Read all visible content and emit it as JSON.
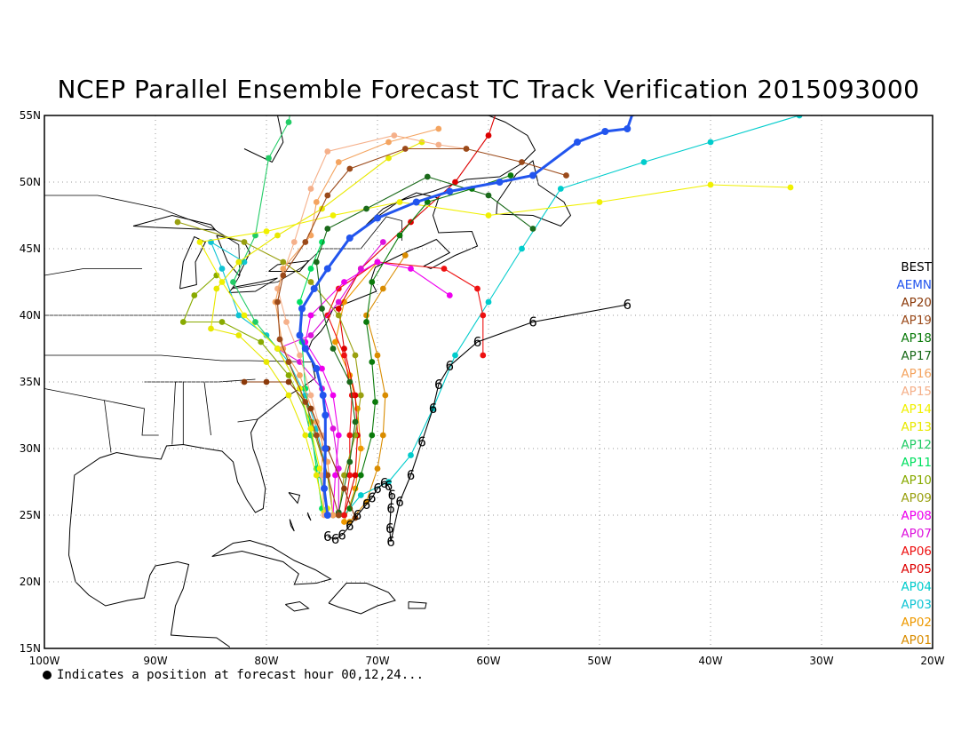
{
  "title": "NCEP Parallel Ensemble Forecast TC Track Verification 2015093000",
  "footnote": "Indicates a position at forecast hour 00,12,24...",
  "axes": {
    "x_ticks": [
      "100W",
      "90W",
      "80W",
      "70W",
      "60W",
      "50W",
      "40W",
      "30W",
      "20W"
    ],
    "y_ticks": [
      "55N",
      "50N",
      "45N",
      "40N",
      "35N",
      "30N",
      "25N",
      "20N",
      "15N"
    ],
    "lon_range": [
      -100,
      -20
    ],
    "lat_range": [
      15,
      55
    ],
    "grid": "dotted"
  },
  "legend": [
    {
      "label": "BEST",
      "color": "#000000"
    },
    {
      "label": "AEMN",
      "color": "#2255ee"
    },
    {
      "label": "AP20",
      "color": "#8b3a0a"
    },
    {
      "label": "AP19",
      "color": "#9b4a1a"
    },
    {
      "label": "AP18",
      "color": "#0a7a0a"
    },
    {
      "label": "AP17",
      "color": "#1a6a1a"
    },
    {
      "label": "AP16",
      "color": "#f4a460"
    },
    {
      "label": "AP15",
      "color": "#f5b08a"
    },
    {
      "label": "AP14",
      "color": "#f0f000"
    },
    {
      "label": "AP13",
      "color": "#e8e800"
    },
    {
      "label": "AP12",
      "color": "#22cc66"
    },
    {
      "label": "AP11",
      "color": "#00e060"
    },
    {
      "label": "AP10",
      "color": "#88aa00"
    },
    {
      "label": "AP09",
      "color": "#99a010"
    },
    {
      "label": "AP08",
      "color": "#ee00ee"
    },
    {
      "label": "AP07",
      "color": "#dd11dd"
    },
    {
      "label": "AP06",
      "color": "#ee1111"
    },
    {
      "label": "AP05",
      "color": "#dd0000"
    },
    {
      "label": "AP04",
      "color": "#00cccc"
    },
    {
      "label": "AP03",
      "color": "#11c4d4"
    },
    {
      "label": "AP02",
      "color": "#ee9900"
    },
    {
      "label": "AP01",
      "color": "#d98c00"
    }
  ],
  "tracks": [
    {
      "id": "BEST",
      "color": "#000000",
      "points": [
        [
          -74.5,
          23.4
        ],
        [
          -73.8,
          23.2
        ],
        [
          -73.2,
          23.5
        ],
        [
          -72.5,
          24.2
        ],
        [
          -71.8,
          25.0
        ],
        [
          -71.0,
          25.8
        ],
        [
          -70.5,
          26.3
        ],
        [
          -70.0,
          27.0
        ],
        [
          -69.4,
          27.4
        ],
        [
          -69.0,
          27.2
        ],
        [
          -68.7,
          26.5
        ],
        [
          -68.8,
          25.5
        ],
        [
          -68.9,
          24.0
        ],
        [
          -68.8,
          23.0
        ],
        [
          -68.0,
          26.0
        ],
        [
          -67.0,
          28.0
        ],
        [
          -66.0,
          30.5
        ],
        [
          -65.0,
          33.0
        ],
        [
          -64.5,
          34.8
        ],
        [
          -63.5,
          36.2
        ],
        [
          -61.0,
          38.0
        ],
        [
          -56.0,
          39.5
        ],
        [
          -47.5,
          40.8
        ]
      ]
    },
    {
      "id": "AEMN",
      "color": "#2255ee",
      "points": [
        [
          -74.5,
          25.0
        ],
        [
          -74.8,
          27.0
        ],
        [
          -74.7,
          30.0
        ],
        [
          -74.7,
          32.5
        ],
        [
          -74.9,
          34.0
        ],
        [
          -75.5,
          36.0
        ],
        [
          -76.5,
          37.5
        ],
        [
          -77.0,
          38.5
        ],
        [
          -76.8,
          40.5
        ],
        [
          -75.7,
          42.0
        ],
        [
          -74.5,
          43.5
        ],
        [
          -72.5,
          45.8
        ],
        [
          -70.0,
          47.3
        ],
        [
          -66.5,
          48.5
        ],
        [
          -63.5,
          49.3
        ],
        [
          -59.0,
          50.0
        ],
        [
          -56.0,
          50.5
        ],
        [
          -52.0,
          53.0
        ],
        [
          -49.5,
          53.8
        ],
        [
          -47.5,
          54.0
        ],
        [
          -47.0,
          55.2
        ]
      ]
    },
    {
      "id": "AP20",
      "color": "#8b3a0a",
      "points": [
        [
          -72.0,
          24.8
        ],
        [
          -73.0,
          27.0
        ],
        [
          -74.5,
          30.0
        ],
        [
          -76.0,
          33.0
        ],
        [
          -78.0,
          35.0
        ],
        [
          -80.0,
          35.0
        ],
        [
          -82.0,
          35.0
        ]
      ]
    },
    {
      "id": "AP19",
      "color": "#9b4a1a",
      "points": [
        [
          -73.5,
          25.0
        ],
        [
          -74.5,
          28.0
        ],
        [
          -75.5,
          31.0
        ],
        [
          -76.5,
          33.5
        ],
        [
          -78.0,
          36.5
        ],
        [
          -78.8,
          38.2
        ],
        [
          -79.0,
          41.0
        ],
        [
          -78.5,
          43.0
        ],
        [
          -76.5,
          45.5
        ],
        [
          -74.5,
          49.0
        ],
        [
          -72.5,
          51.0
        ],
        [
          -67.5,
          52.5
        ],
        [
          -62.0,
          52.5
        ],
        [
          -57.0,
          51.5
        ],
        [
          -53.0,
          50.5
        ]
      ]
    },
    {
      "id": "AP18",
      "color": "#0a7a0a",
      "points": [
        [
          -72.5,
          25.5
        ],
        [
          -71.5,
          28.0
        ],
        [
          -70.5,
          31.0
        ],
        [
          -70.2,
          33.5
        ],
        [
          -70.5,
          36.5
        ],
        [
          -71.0,
          39.5
        ],
        [
          -70.5,
          42.5
        ],
        [
          -68.0,
          46.0
        ],
        [
          -65.5,
          48.5
        ],
        [
          -61.5,
          49.5
        ],
        [
          -58.0,
          50.5
        ]
      ]
    },
    {
      "id": "AP17",
      "color": "#1a6a1a",
      "points": [
        [
          -73.5,
          25.2
        ],
        [
          -72.5,
          29.0
        ],
        [
          -72.0,
          32.0
        ],
        [
          -72.5,
          35.0
        ],
        [
          -74.0,
          37.5
        ],
        [
          -75.0,
          40.5
        ],
        [
          -75.5,
          44.0
        ],
        [
          -74.5,
          46.5
        ],
        [
          -71.0,
          48.0
        ],
        [
          -65.5,
          50.4
        ],
        [
          -60.0,
          49.0
        ],
        [
          -56.0,
          46.5
        ]
      ]
    },
    {
      "id": "AP16",
      "color": "#f4a460",
      "points": [
        [
          -74.0,
          25.0
        ],
        [
          -74.5,
          29.0
        ],
        [
          -75.5,
          32.0
        ],
        [
          -77.0,
          35.5
        ],
        [
          -78.5,
          37.5
        ],
        [
          -79.2,
          41.0
        ],
        [
          -78.5,
          43.5
        ],
        [
          -76.0,
          46.0
        ],
        [
          -75.5,
          48.5
        ],
        [
          -73.5,
          51.5
        ],
        [
          -69.0,
          53.0
        ],
        [
          -64.5,
          54.0
        ]
      ]
    },
    {
      "id": "AP15",
      "color": "#f5b08a",
      "points": [
        [
          -74.8,
          25.0
        ],
        [
          -75.0,
          28.0
        ],
        [
          -75.0,
          31.0
        ],
        [
          -76.0,
          34.0
        ],
        [
          -77.0,
          37.0
        ],
        [
          -78.2,
          39.5
        ],
        [
          -79.0,
          42.0
        ],
        [
          -77.5,
          45.5
        ],
        [
          -76.0,
          49.5
        ],
        [
          -74.5,
          52.3
        ],
        [
          -68.5,
          53.5
        ],
        [
          -64.5,
          52.8
        ],
        [
          -62.0,
          52.5
        ]
      ]
    },
    {
      "id": "AP14",
      "color": "#f0f000",
      "points": [
        [
          -74.5,
          25.5
        ],
        [
          -75.2,
          28.5
        ],
        [
          -76.0,
          31.5
        ],
        [
          -77.0,
          34.5
        ],
        [
          -79.0,
          37.5
        ],
        [
          -82.0,
          40.0
        ],
        [
          -84.0,
          42.5
        ],
        [
          -86.0,
          45.5
        ],
        [
          -80.0,
          46.3
        ],
        [
          -74.0,
          47.5
        ],
        [
          -68.0,
          48.5
        ],
        [
          -60.0,
          47.5
        ],
        [
          -50.0,
          48.5
        ],
        [
          -40.0,
          49.8
        ],
        [
          -32.8,
          49.6
        ]
      ]
    },
    {
      "id": "AP13",
      "color": "#e8e800",
      "points": [
        [
          -74.8,
          25.2
        ],
        [
          -75.5,
          28.0
        ],
        [
          -76.5,
          31.0
        ],
        [
          -78.0,
          34.0
        ],
        [
          -80.0,
          36.5
        ],
        [
          -82.5,
          38.5
        ],
        [
          -85.0,
          39.0
        ],
        [
          -84.5,
          42.0
        ],
        [
          -82.5,
          44.0
        ],
        [
          -79.0,
          46.0
        ],
        [
          -75.0,
          48.0
        ],
        [
          -69.0,
          51.8
        ],
        [
          -66.0,
          53.0
        ]
      ]
    },
    {
      "id": "AP12",
      "color": "#22cc66",
      "points": [
        [
          -74.5,
          25.0
        ],
        [
          -75.2,
          28.0
        ],
        [
          -76.0,
          31.0
        ],
        [
          -77.0,
          34.5
        ],
        [
          -79.0,
          37.5
        ],
        [
          -81.0,
          39.5
        ],
        [
          -83.0,
          42.5
        ],
        [
          -81.0,
          46.0
        ],
        [
          -79.8,
          51.8
        ],
        [
          -78.0,
          54.5
        ],
        [
          -77.5,
          57.0
        ]
      ]
    },
    {
      "id": "AP11",
      "color": "#00e060",
      "points": [
        [
          -75.0,
          25.5
        ],
        [
          -75.5,
          28.5
        ],
        [
          -76.0,
          31.5
        ],
        [
          -76.5,
          34.5
        ],
        [
          -76.8,
          38.0
        ],
        [
          -77.0,
          41.0
        ],
        [
          -76.0,
          43.5
        ],
        [
          -75.0,
          45.5
        ]
      ]
    },
    {
      "id": "AP10",
      "color": "#88aa00",
      "points": [
        [
          -74.0,
          25.0
        ],
        [
          -74.5,
          28.0
        ],
        [
          -76.0,
          32.0
        ],
        [
          -78.0,
          35.5
        ],
        [
          -80.5,
          38.0
        ],
        [
          -84.0,
          39.5
        ],
        [
          -87.5,
          39.5
        ],
        [
          -86.5,
          41.5
        ],
        [
          -84.5,
          43.0
        ]
      ]
    },
    {
      "id": "AP09",
      "color": "#99a010",
      "points": [
        [
          -73.5,
          25.0
        ],
        [
          -73.0,
          28.0
        ],
        [
          -72.0,
          31.0
        ],
        [
          -71.5,
          34.0
        ],
        [
          -72.0,
          37.0
        ],
        [
          -73.5,
          40.0
        ],
        [
          -76.0,
          42.5
        ],
        [
          -78.5,
          44.0
        ],
        [
          -82.0,
          45.5
        ],
        [
          -88.0,
          47.0
        ]
      ]
    },
    {
      "id": "AP08",
      "color": "#ee00ee",
      "points": [
        [
          -74.0,
          25.0
        ],
        [
          -73.8,
          28.0
        ],
        [
          -73.5,
          31.0
        ],
        [
          -74.0,
          34.0
        ],
        [
          -75.0,
          36.0
        ],
        [
          -76.5,
          38.0
        ],
        [
          -76.0,
          40.0
        ],
        [
          -73.0,
          42.5
        ],
        [
          -70.0,
          44.0
        ],
        [
          -67.0,
          43.5
        ],
        [
          -63.5,
          41.5
        ]
      ]
    },
    {
      "id": "AP07",
      "color": "#dd11dd",
      "points": [
        [
          -73.5,
          25.2
        ],
        [
          -73.5,
          28.5
        ],
        [
          -74.0,
          31.5
        ],
        [
          -75.0,
          34.5
        ],
        [
          -77.0,
          36.5
        ],
        [
          -79.0,
          37.5
        ],
        [
          -76.0,
          38.5
        ],
        [
          -73.5,
          41.0
        ],
        [
          -71.5,
          43.5
        ],
        [
          -69.5,
          45.5
        ]
      ]
    },
    {
      "id": "AP06",
      "color": "#ee1111",
      "points": [
        [
          -73.0,
          25.0
        ],
        [
          -72.5,
          28.0
        ],
        [
          -72.5,
          31.0
        ],
        [
          -72.3,
          34.0
        ],
        [
          -73.0,
          37.0
        ],
        [
          -74.5,
          40.0
        ],
        [
          -73.5,
          42.0
        ],
        [
          -70.0,
          44.0
        ],
        [
          -64.0,
          43.5
        ],
        [
          -61.0,
          42.0
        ],
        [
          -60.5,
          40.0
        ],
        [
          -60.5,
          37.0
        ]
      ]
    },
    {
      "id": "AP05",
      "color": "#dd0000",
      "points": [
        [
          -73.0,
          25.0
        ],
        [
          -72.0,
          28.0
        ],
        [
          -71.8,
          31.0
        ],
        [
          -72.0,
          34.0
        ],
        [
          -73.0,
          37.5
        ],
        [
          -73.5,
          40.5
        ],
        [
          -71.5,
          43.5
        ],
        [
          -67.0,
          47.0
        ],
        [
          -63.0,
          50.0
        ],
        [
          -60.0,
          53.5
        ],
        [
          -59.0,
          56.0
        ]
      ]
    },
    {
      "id": "AP04",
      "color": "#00cccc",
      "points": [
        [
          -73.0,
          25.0
        ],
        [
          -71.5,
          26.5
        ],
        [
          -69.0,
          27.5
        ],
        [
          -67.0,
          29.5
        ],
        [
          -65.0,
          33.0
        ],
        [
          -63.0,
          37.0
        ],
        [
          -60.0,
          41.0
        ],
        [
          -57.0,
          45.0
        ],
        [
          -53.5,
          49.5
        ],
        [
          -46.0,
          51.5
        ],
        [
          -40.0,
          53.0
        ],
        [
          -32.0,
          55.0
        ]
      ]
    },
    {
      "id": "AP03",
      "color": "#11c4d4",
      "points": [
        [
          -74.0,
          25.0
        ],
        [
          -74.5,
          28.0
        ],
        [
          -75.5,
          31.5
        ],
        [
          -76.5,
          34.0
        ],
        [
          -78.0,
          36.5
        ],
        [
          -80.0,
          38.5
        ],
        [
          -82.5,
          40.0
        ],
        [
          -84.0,
          43.5
        ],
        [
          -85.0,
          45.5
        ],
        [
          -82.0,
          44.0
        ]
      ]
    },
    {
      "id": "AP02",
      "color": "#ee9900",
      "points": [
        [
          -73.0,
          24.5
        ],
        [
          -72.0,
          27.0
        ],
        [
          -71.5,
          30.0
        ],
        [
          -71.8,
          33.0
        ],
        [
          -72.5,
          35.5
        ],
        [
          -73.8,
          38.0
        ],
        [
          -73.0,
          41.0
        ],
        [
          -70.0,
          44.0
        ]
      ]
    },
    {
      "id": "AP01",
      "color": "#d98c00",
      "points": [
        [
          -72.5,
          24.5
        ],
        [
          -71.0,
          26.0
        ],
        [
          -70.0,
          28.5
        ],
        [
          -69.5,
          31.0
        ],
        [
          -69.3,
          34.0
        ],
        [
          -70.0,
          37.0
        ],
        [
          -71.0,
          40.0
        ],
        [
          -69.5,
          42.0
        ],
        [
          -67.5,
          44.5
        ]
      ]
    }
  ]
}
